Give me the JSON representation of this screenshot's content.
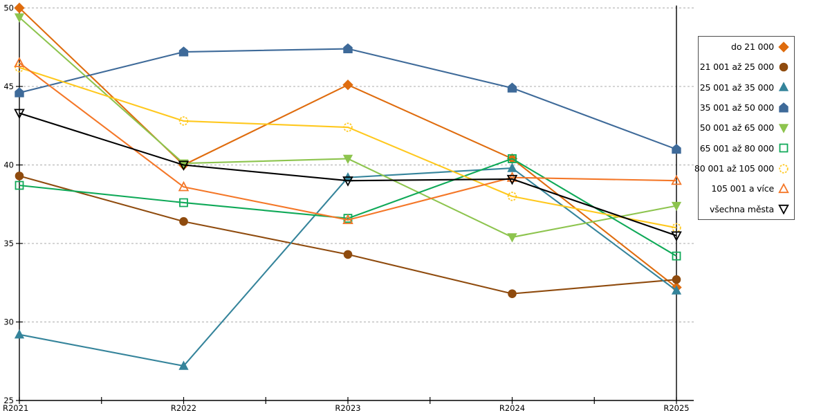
{
  "chart_data": {
    "type": "line",
    "categories": [
      "R2021",
      "R2022",
      "R2023",
      "R2024",
      "R2025"
    ],
    "y_ticks": [
      25,
      30,
      35,
      40,
      45,
      50
    ],
    "ylim": [
      25,
      50
    ],
    "grid": "horizontal-dashed",
    "legend_position": "right-outside",
    "series": [
      {
        "name": "do 21 000",
        "color": "#DF6C0E",
        "marker": "diamond",
        "marker_fill": "solid",
        "values": [
          50.0,
          40.0,
          45.1,
          40.4,
          32.2
        ]
      },
      {
        "name": "21 001 až 25 000",
        "color": "#8F4B0E",
        "marker": "circle",
        "marker_fill": "solid",
        "values": [
          39.3,
          36.4,
          34.3,
          31.8,
          32.7
        ]
      },
      {
        "name": "25 001 až 35 000",
        "color": "#35849B",
        "marker": "triangle-up",
        "marker_fill": "solid",
        "values": [
          29.2,
          27.2,
          39.2,
          39.8,
          32.0
        ]
      },
      {
        "name": "35 001 až 50 000",
        "color": "#3E6A99",
        "marker": "pentagon",
        "marker_fill": "solid",
        "values": [
          44.6,
          47.2,
          47.4,
          44.9,
          41.0
        ]
      },
      {
        "name": "50 001 až 65 000",
        "color": "#8DC44E",
        "marker": "triangle-down",
        "marker_fill": "solid",
        "values": [
          49.4,
          40.1,
          40.4,
          35.4,
          37.4
        ]
      },
      {
        "name": "65 001 až 80 000",
        "color": "#0FA958",
        "marker": "square",
        "marker_fill": "hollow",
        "values": [
          38.7,
          37.6,
          36.6,
          40.4,
          34.2
        ]
      },
      {
        "name": "80 001 až 105 000",
        "color": "#FFC81E",
        "marker": "circle",
        "marker_fill": "hollow",
        "values": [
          46.2,
          42.8,
          42.4,
          38.0,
          36.0
        ]
      },
      {
        "name": "105 001 a více",
        "color": "#F47728",
        "marker": "triangle-up",
        "marker_fill": "hollow",
        "values": [
          46.5,
          38.6,
          36.5,
          39.2,
          39.0
        ]
      },
      {
        "name": "všechna města",
        "color": "#000000",
        "marker": "triangle-down",
        "marker_fill": "hollow",
        "values": [
          43.3,
          40.0,
          39.0,
          39.1,
          35.5
        ]
      }
    ]
  },
  "colors": {
    "background": "#ffffff",
    "gridline": "#ababab",
    "axis": "#000000",
    "legend_border": "#4d4d4d"
  }
}
